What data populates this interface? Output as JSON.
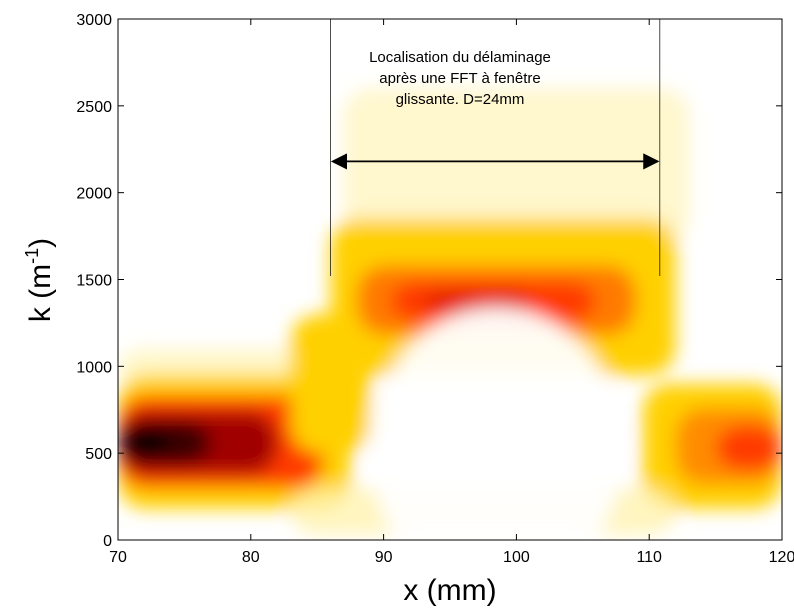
{
  "chart_data": {
    "type": "heatmap",
    "title": "",
    "xlabel": "x (mm)",
    "ylabel_main": "k (m",
    "ylabel_sup": "-1",
    "ylabel_close": ")",
    "xlim": [
      70,
      120
    ],
    "ylim": [
      0,
      3000
    ],
    "xticks": [
      70,
      80,
      90,
      100,
      110,
      120
    ],
    "yticks": [
      0,
      500,
      1000,
      1500,
      2000,
      2500,
      3000
    ],
    "colormap": "hot-inverted",
    "colors": {
      "peak": "#000000",
      "high": "#a00000",
      "mid": "#ff3a00",
      "low": "#ffd000",
      "background": "#ffffff"
    },
    "energy_bands": [
      {
        "x_start": 70,
        "x_end": 87,
        "k_center": 560,
        "peak_intensity": 1.0
      },
      {
        "x_start": 86,
        "x_end": 111,
        "k_center": 1370,
        "peak_intensity": 0.62
      },
      {
        "x_start": 110,
        "x_end": 120,
        "k_center": 520,
        "peak_intensity": 0.58
      },
      {
        "x_start": 88,
        "x_end": 112,
        "k_center": 2300,
        "peak_intensity": 0.12
      }
    ],
    "annotation": {
      "lines": [
        "Localisation du délaminage",
        "après une FFT à fenêtre",
        "glissante. D=24mm"
      ],
      "x_left": 86,
      "x_right": 110.8,
      "line_k_bottom": 1520,
      "line_k_top": 3000,
      "arrow_k": 2180
    }
  }
}
